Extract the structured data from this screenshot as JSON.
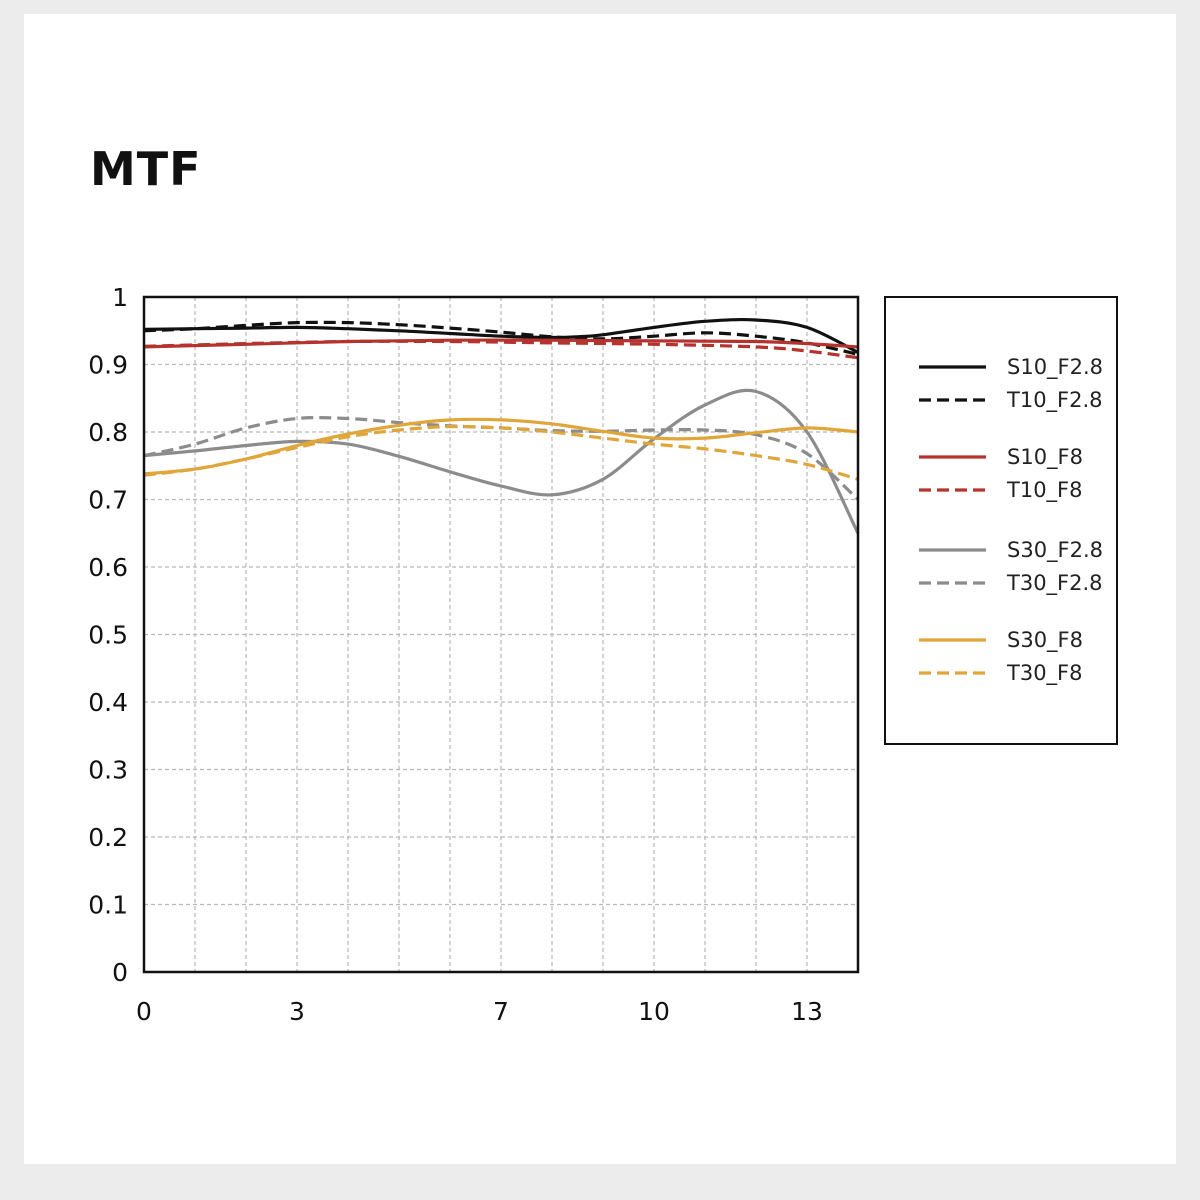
{
  "chart_data": {
    "type": "line",
    "title": "MTF",
    "xlabel": "",
    "ylabel": "",
    "xlim": [
      0,
      14
    ],
    "ylim": [
      0,
      1
    ],
    "x_ticks": [
      "0",
      "3",
      "7",
      "10",
      "13"
    ],
    "x_tick_values": [
      0,
      3,
      7,
      10,
      13
    ],
    "y_ticks": [
      "0",
      "0.1",
      "0.2",
      "0.3",
      "0.4",
      "0.5",
      "0.6",
      "0.7",
      "0.8",
      "0.9",
      "1"
    ],
    "y_tick_values": [
      0,
      0.1,
      0.2,
      0.3,
      0.4,
      0.5,
      0.6,
      0.7,
      0.8,
      0.9,
      1
    ],
    "grid": true,
    "legend_position": "right",
    "series": [
      {
        "name": "S10_F2.8",
        "color": "#111111",
        "dash": false,
        "x": [
          0,
          1,
          2,
          3,
          4,
          5,
          6,
          7,
          8,
          8.5,
          9,
          10,
          11,
          12,
          13,
          14
        ],
        "y": [
          0.952,
          0.953,
          0.954,
          0.955,
          0.953,
          0.95,
          0.946,
          0.942,
          0.94,
          0.941,
          0.944,
          0.955,
          0.964,
          0.966,
          0.955,
          0.918
        ]
      },
      {
        "name": "T10_F2.8",
        "color": "#111111",
        "dash": true,
        "x": [
          0,
          1,
          2,
          3,
          4,
          5,
          6,
          7,
          8,
          9,
          10,
          11,
          12,
          13,
          14
        ],
        "y": [
          0.95,
          0.953,
          0.958,
          0.962,
          0.962,
          0.959,
          0.954,
          0.948,
          0.941,
          0.938,
          0.942,
          0.947,
          0.942,
          0.932,
          0.915
        ]
      },
      {
        "name": "S10_F8",
        "color": "#b5332e",
        "dash": false,
        "x": [
          0,
          2,
          4,
          6,
          8,
          10,
          12,
          13,
          14
        ],
        "y": [
          0.926,
          0.93,
          0.934,
          0.936,
          0.936,
          0.935,
          0.934,
          0.931,
          0.926
        ]
      },
      {
        "name": "T10_F8",
        "color": "#b5332e",
        "dash": true,
        "x": [
          0,
          2,
          4,
          6,
          8,
          10,
          12,
          13,
          14
        ],
        "y": [
          0.927,
          0.931,
          0.934,
          0.934,
          0.932,
          0.93,
          0.926,
          0.92,
          0.91
        ]
      },
      {
        "name": "S30_F2.8",
        "color": "#8c8c8c",
        "dash": false,
        "x": [
          0,
          1,
          2,
          3,
          4,
          5,
          6,
          7,
          8,
          9,
          10,
          11,
          12,
          13,
          14
        ],
        "y": [
          0.765,
          0.772,
          0.78,
          0.786,
          0.782,
          0.764,
          0.741,
          0.72,
          0.707,
          0.73,
          0.79,
          0.84,
          0.86,
          0.8,
          0.65
        ]
      },
      {
        "name": "T30_F2.8",
        "color": "#8c8c8c",
        "dash": true,
        "x": [
          0,
          1,
          2,
          3,
          4,
          5,
          6,
          7,
          8,
          9,
          10,
          11,
          12,
          13,
          14
        ],
        "y": [
          0.765,
          0.782,
          0.806,
          0.82,
          0.82,
          0.814,
          0.809,
          0.806,
          0.802,
          0.801,
          0.803,
          0.803,
          0.796,
          0.768,
          0.7
        ]
      },
      {
        "name": "S30_F8",
        "color": "#e0a63a",
        "dash": false,
        "x": [
          0,
          1,
          2,
          3,
          4,
          5,
          6,
          7,
          8,
          9,
          10,
          11,
          12,
          13,
          14
        ],
        "y": [
          0.738,
          0.745,
          0.76,
          0.78,
          0.797,
          0.81,
          0.818,
          0.818,
          0.812,
          0.801,
          0.791,
          0.791,
          0.799,
          0.806,
          0.8
        ]
      },
      {
        "name": "T30_F8",
        "color": "#e0a63a",
        "dash": true,
        "x": [
          0,
          1,
          2,
          3,
          4,
          5,
          6,
          7,
          8,
          9,
          10,
          11,
          12,
          13,
          14
        ],
        "y": [
          0.736,
          0.745,
          0.76,
          0.777,
          0.793,
          0.803,
          0.808,
          0.806,
          0.8,
          0.791,
          0.782,
          0.775,
          0.765,
          0.752,
          0.73
        ]
      }
    ]
  }
}
